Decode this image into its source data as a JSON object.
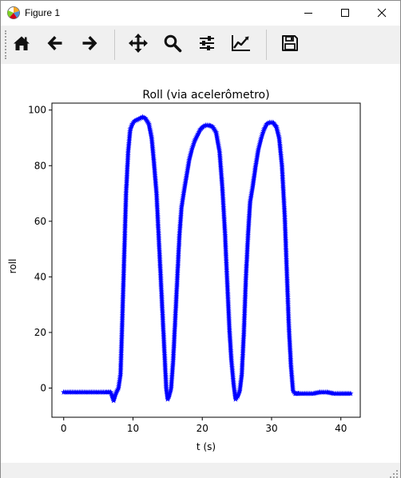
{
  "window": {
    "title": "Figure 1",
    "icons": [
      "matplotlib-app-icon",
      "minimize-icon",
      "maximize-icon",
      "close-icon"
    ]
  },
  "toolbar": {
    "buttons": [
      {
        "name": "home-button",
        "icon": "home-icon"
      },
      {
        "name": "back-button",
        "icon": "arrow-left-icon"
      },
      {
        "name": "forward-button",
        "icon": "arrow-right-icon"
      },
      {
        "name": "pan-button",
        "icon": "move-icon"
      },
      {
        "name": "zoom-button",
        "icon": "magnifier-icon"
      },
      {
        "name": "configure-subplots-button",
        "icon": "sliders-icon"
      },
      {
        "name": "edit-axes-button",
        "icon": "chart-line-icon"
      },
      {
        "name": "save-button",
        "icon": "floppy-disk-icon"
      }
    ]
  },
  "chart_data": {
    "type": "line",
    "title": "Roll (via acelerômetro)",
    "xlabel": "t (s)",
    "ylabel": "roll",
    "xlim": [
      -1.7,
      42.8
    ],
    "ylim": [
      -10.5,
      102.5
    ],
    "xticks": [
      0,
      10,
      20,
      30,
      40
    ],
    "yticks": [
      0,
      20,
      40,
      60,
      80,
      100
    ],
    "grid": false,
    "marker": "star",
    "color": "#0000ff",
    "series": [
      {
        "x": [
          0,
          1,
          2,
          3,
          4,
          5,
          6,
          6.8,
          7.2,
          7.5,
          7.9,
          8.2,
          8.4,
          8.7,
          9.0,
          9.3,
          9.6,
          9.9,
          10.2,
          10.6,
          11.0,
          11.4,
          11.8,
          12.3,
          12.7,
          13.0,
          13.4,
          13.7,
          14.0,
          14.3,
          14.6,
          14.8,
          15.0,
          15.2,
          15.5,
          15.8,
          16.1,
          16.4,
          16.7,
          17.0,
          17.3,
          17.7,
          18.1,
          18.5,
          18.9,
          19.3,
          19.7,
          20.1,
          20.5,
          21.0,
          21.5,
          22.0,
          22.5,
          22.9,
          23.3,
          23.6,
          23.9,
          24.2,
          24.5,
          24.8,
          25.1,
          25.4,
          25.7,
          26.0,
          26.3,
          26.6,
          26.9,
          27.3,
          27.7,
          28.1,
          28.5,
          28.9,
          29.3,
          29.7,
          30.2,
          30.7,
          31.1,
          31.5,
          31.9,
          32.2,
          32.5,
          32.8,
          33.1,
          33.4,
          33.7,
          34.0,
          35,
          36,
          37,
          38,
          39,
          40,
          41.4
        ],
        "y": [
          -1.5,
          -1.5,
          -1.5,
          -1.5,
          -1.5,
          -1.5,
          -1.5,
          -1.5,
          -4.5,
          -2,
          0,
          5,
          20,
          45,
          70,
          85,
          93,
          95,
          96,
          96.5,
          97,
          97.5,
          97,
          95,
          90,
          82,
          70,
          55,
          40,
          25,
          10,
          0,
          -4,
          -3,
          0,
          10,
          25,
          40,
          55,
          65,
          70,
          76,
          82,
          86,
          89,
          91,
          93,
          94,
          94.5,
          94.5,
          94,
          92,
          85,
          72,
          55,
          38,
          22,
          10,
          2,
          -4,
          -3,
          -1,
          5,
          20,
          40,
          55,
          67,
          73,
          80,
          86,
          90,
          93,
          95,
          95.5,
          95.5,
          94,
          90,
          80,
          62,
          42,
          22,
          8,
          -1,
          -2,
          -2,
          -2,
          -2,
          -2,
          -1.5,
          -1.5,
          -2,
          -2,
          -2
        ]
      }
    ]
  }
}
